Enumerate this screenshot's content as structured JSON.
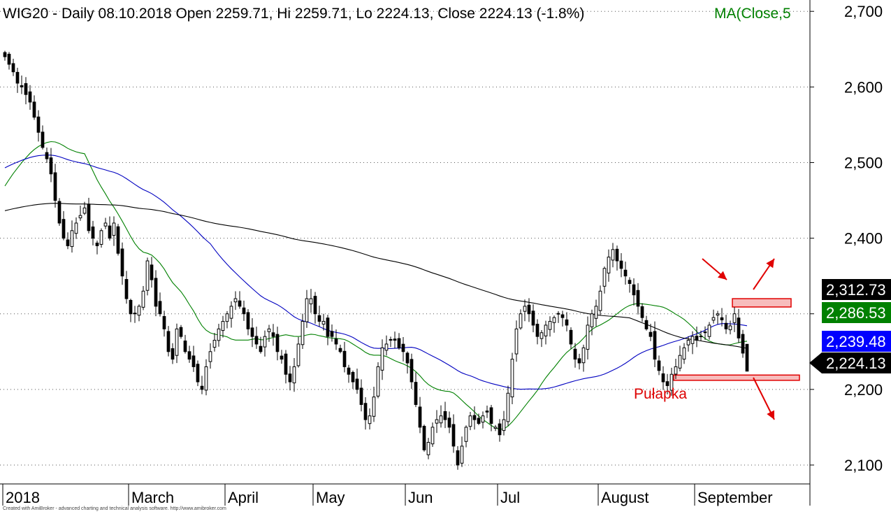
{
  "chart_data": {
    "type": "candlestick",
    "title": "WIG20 - Daily 08.10.2018 Open 2259.71, Hi 2259.71, Lo 2224.13, Close 2224.13 (-1.8%)",
    "title_ma": "MA(Close,5",
    "ylim": [
      2075,
      2715
    ],
    "y_ticks": [
      2100,
      2200,
      2300,
      2400,
      2500,
      2600,
      2700
    ],
    "y_tick_labels": [
      "2,100",
      "2,200",
      "2,300",
      "2,400",
      "2,500",
      "2,600",
      "2,700"
    ],
    "grid": "horizontal dotted",
    "x_ticks": [
      {
        "bar": 0,
        "label": "2018"
      },
      {
        "bar": 30,
        "label": "March"
      },
      {
        "bar": 53,
        "label": "April"
      },
      {
        "bar": 74,
        "label": "May"
      },
      {
        "bar": 96,
        "label": "Jun"
      },
      {
        "bar": 118,
        "label": "Jul"
      },
      {
        "bar": 142,
        "label": "August"
      },
      {
        "bar": 165,
        "label": "September"
      }
    ],
    "n_bars": 192,
    "last_bar": 186,
    "candles": [],
    "close": [
      2640,
      2630,
      2620,
      2605,
      2600,
      2590,
      2580,
      2560,
      2540,
      2520,
      2505,
      2485,
      2450,
      2420,
      2400,
      2390,
      2410,
      2420,
      2430,
      2440,
      2410,
      2400,
      2390,
      2410,
      2420,
      2400,
      2420,
      2380,
      2350,
      2320,
      2300,
      2300,
      2310,
      2330,
      2370,
      2345,
      2310,
      2300,
      2280,
      2250,
      2240,
      2280,
      2270,
      2250,
      2240,
      2230,
      2210,
      2200,
      2230,
      2250,
      2265,
      2280,
      2290,
      2300,
      2310,
      2320,
      2310,
      2300,
      2280,
      2270,
      2260,
      2250,
      2270,
      2280,
      2270,
      2250,
      2240,
      2220,
      2210,
      2230,
      2260,
      2290,
      2320,
      2320,
      2300,
      2290,
      2290,
      2270,
      2270,
      2260,
      2250,
      2230,
      2220,
      2210,
      2200,
      2180,
      2160,
      2165,
      2190,
      2230,
      2255,
      2260,
      2265,
      2265,
      2255,
      2250,
      2235,
      2210,
      2180,
      2150,
      2120,
      2130,
      2150,
      2160,
      2165,
      2160,
      2150,
      2125,
      2100,
      2125,
      2150,
      2165,
      2160,
      2155,
      2165,
      2170,
      2155,
      2150,
      2140,
      2160,
      2195,
      2240,
      2280,
      2300,
      2310,
      2300,
      2285,
      2270,
      2275,
      2285,
      2290,
      2295,
      2300,
      2295,
      2285,
      2260,
      2240,
      2235,
      2255,
      2285,
      2300,
      2310,
      2330,
      2360,
      2375,
      2385,
      2370,
      2360,
      2350,
      2340,
      2325,
      2310,
      2295,
      2280,
      2270,
      2240,
      2225,
      2210,
      2205,
      2220,
      2230,
      2245,
      2255,
      2265,
      2270,
      2265,
      2270,
      2275,
      2285,
      2295,
      2300,
      2292,
      2280,
      2284,
      2300,
      2268,
      2248,
      2224
    ],
    "series": [
      {
        "name": "MA(Close,5",
        "color": "#008000",
        "values": []
      },
      {
        "color": "#0000c0",
        "values": []
      },
      {
        "color": "#000000",
        "values": []
      }
    ],
    "last_value_badges": [
      {
        "value": 2312.73,
        "label": "2,312.73",
        "bg": "#000000",
        "fg": "#ffffff"
      },
      {
        "value": 2286.53,
        "label": "2,286.53",
        "bg": "#008000",
        "fg": "#ffffff"
      },
      {
        "value": 2239.48,
        "label": "2,239.48",
        "bg": "#0000ff",
        "fg": "#ffffff"
      },
      {
        "value": 2224.13,
        "label": "2,224.13",
        "bg": "#000000",
        "fg": "#ffffff",
        "pointer": true
      }
    ],
    "annotations": {
      "text": "Pułapka",
      "text_color": "#dd0000",
      "upper_zone": {
        "bar_from": 174,
        "bar_to": 188,
        "y_low": 2309,
        "y_high": 2320
      },
      "lower_zone": {
        "bar_from": 160,
        "bar_to": 190,
        "y_low": 2212,
        "y_high": 2219
      }
    }
  },
  "footer": "Created with AmiBroker - advanced charting and technical analysis software. http://www.amibroker.com"
}
